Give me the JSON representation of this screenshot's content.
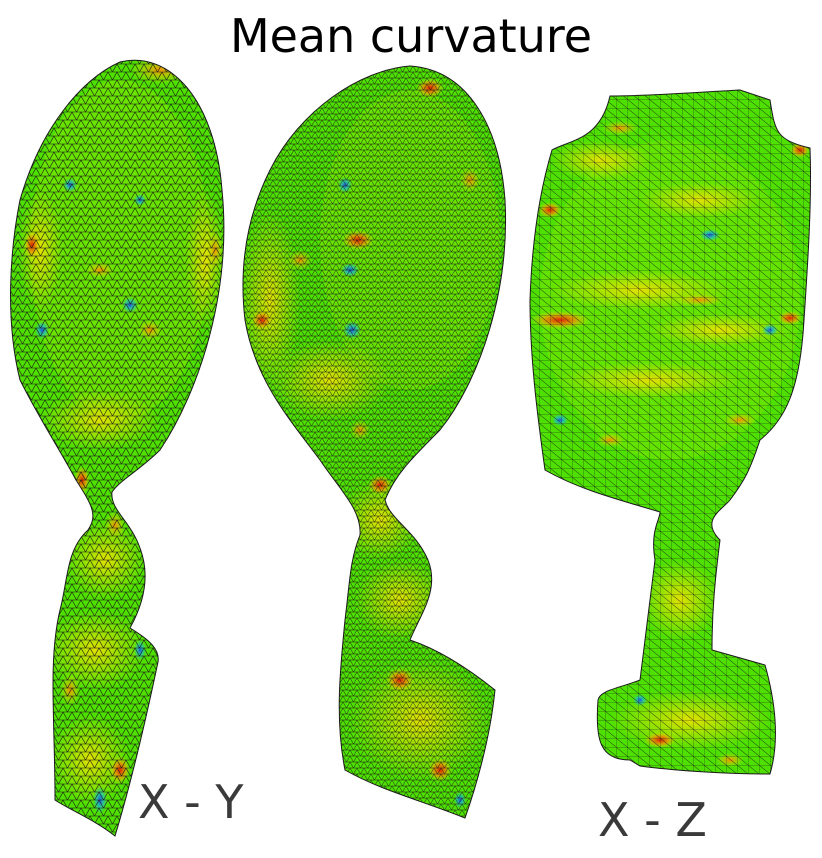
{
  "title": "Mean curvature",
  "views": [
    {
      "id": "left",
      "label": ""
    },
    {
      "id": "middle",
      "label": ""
    },
    {
      "id": "right",
      "label": ""
    }
  ],
  "labels": {
    "xy": "X - Y",
    "xz": "X - Z"
  },
  "colors": {
    "base": "#4ee000",
    "yellow": "#e8e800",
    "orange": "#f09000",
    "red": "#e02000",
    "blue": "#2050e0",
    "cyan": "#20c0c0",
    "wire": "#1a1a1a"
  }
}
